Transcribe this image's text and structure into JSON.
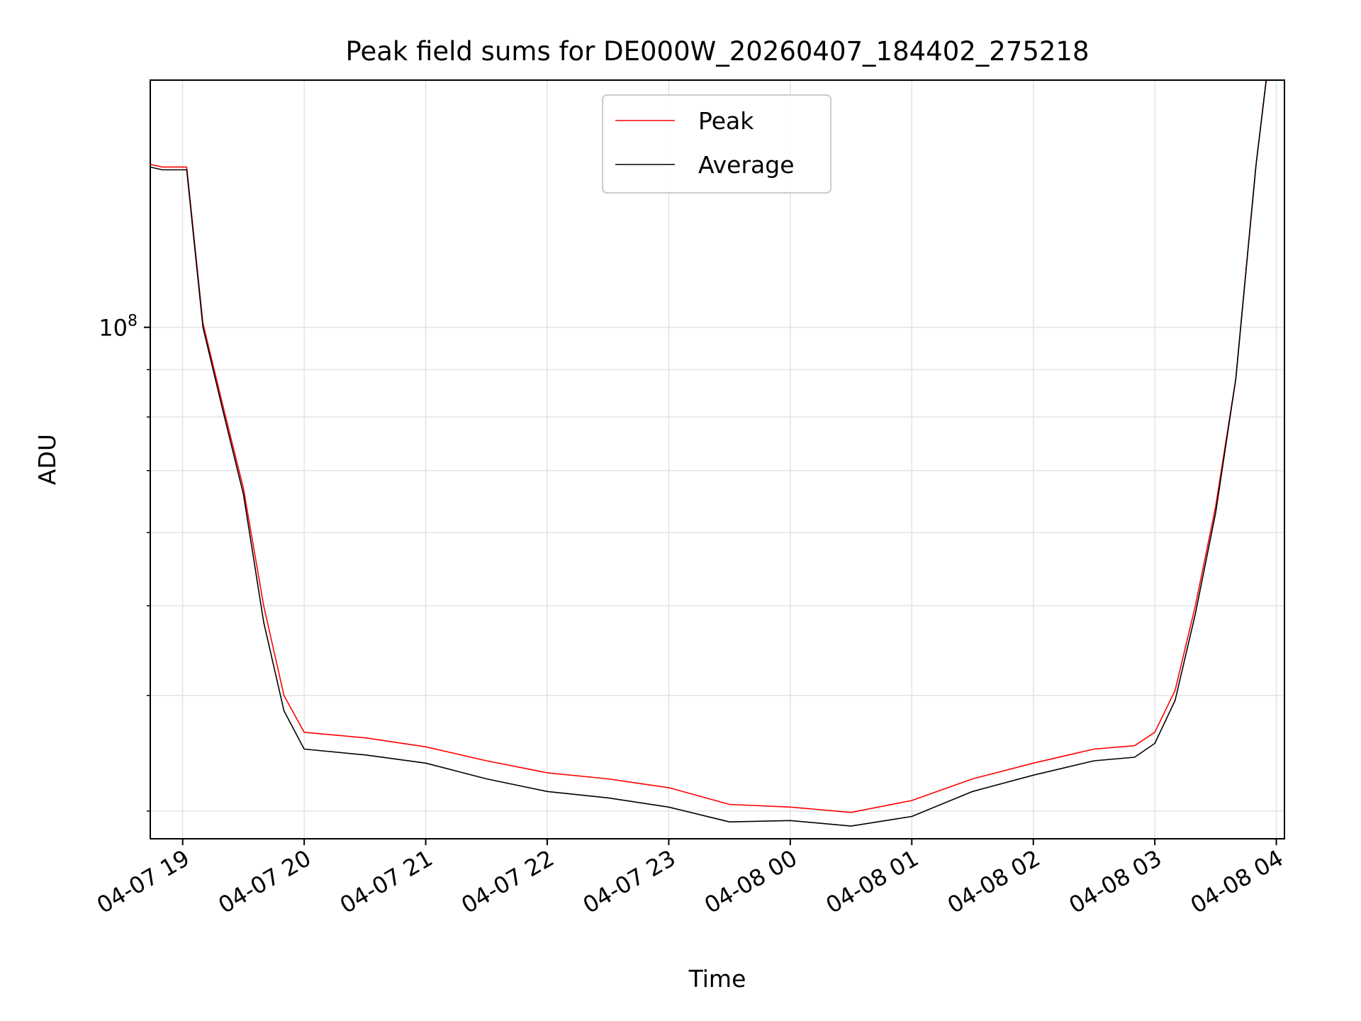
{
  "chart_data": {
    "type": "line",
    "title": "Peak field sums for DE000W_20260407_184402_275218",
    "xlabel": "Time",
    "ylabel": "ADU",
    "y_scale": "log",
    "y_tick_label": {
      "base": "10",
      "exp": "8"
    },
    "x_tick_labels": [
      "04-07 19",
      "04-07 20",
      "04-07 21",
      "04-07 22",
      "04-07 23",
      "04-08 00",
      "04-08 01",
      "04-08 02",
      "04-08 03",
      "04-08 04"
    ],
    "x_start": "2026-04-07 18:44",
    "x_end": "2026-04-08 04:04",
    "ylim": [
      28000000,
      185000000
    ],
    "grid": true,
    "legend": {
      "position": "top-center"
    },
    "series": [
      {
        "name": "Peak",
        "color": "#ff0000",
        "x": [
          "2026-04-07 18:44",
          "2026-04-07 18:50",
          "2026-04-07 19:02",
          "2026-04-07 19:10",
          "2026-04-07 19:20",
          "2026-04-07 19:30",
          "2026-04-07 19:40",
          "2026-04-07 19:50",
          "2026-04-07 20:00",
          "2026-04-07 20:30",
          "2026-04-07 21:00",
          "2026-04-07 21:30",
          "2026-04-07 22:00",
          "2026-04-07 22:30",
          "2026-04-07 23:00",
          "2026-04-07 23:30",
          "2026-04-08 00:00",
          "2026-04-08 00:30",
          "2026-04-08 01:00",
          "2026-04-08 01:30",
          "2026-04-08 02:00",
          "2026-04-08 02:30",
          "2026-04-08 02:50",
          "2026-04-08 03:00",
          "2026-04-08 03:10",
          "2026-04-08 03:20",
          "2026-04-08 03:30",
          "2026-04-08 03:40",
          "2026-04-08 03:45",
          "2026-04-08 03:50",
          "2026-04-08 03:55"
        ],
        "y": [
          150000000,
          149000000,
          149000000,
          101000000,
          82000000,
          67000000,
          50000000,
          40000000,
          36500000,
          36000000,
          35200000,
          34000000,
          33000000,
          32500000,
          31800000,
          30500000,
          30300000,
          29900000,
          30800000,
          32500000,
          33800000,
          35000000,
          35300000,
          36500000,
          40500000,
          50000000,
          64000000,
          88000000,
          115000000,
          150000000,
          185000000
        ]
      },
      {
        "name": "Average",
        "color": "#000000",
        "x": [
          "2026-04-07 18:44",
          "2026-04-07 18:50",
          "2026-04-07 19:02",
          "2026-04-07 19:10",
          "2026-04-07 19:20",
          "2026-04-07 19:30",
          "2026-04-07 19:40",
          "2026-04-07 19:50",
          "2026-04-07 20:00",
          "2026-04-07 20:30",
          "2026-04-07 21:00",
          "2026-04-07 21:30",
          "2026-04-07 22:00",
          "2026-04-07 22:30",
          "2026-04-07 23:00",
          "2026-04-07 23:30",
          "2026-04-08 00:00",
          "2026-04-08 00:30",
          "2026-04-08 01:00",
          "2026-04-08 01:30",
          "2026-04-08 02:00",
          "2026-04-08 02:30",
          "2026-04-08 02:50",
          "2026-04-08 03:00",
          "2026-04-08 03:10",
          "2026-04-08 03:20",
          "2026-04-08 03:30",
          "2026-04-08 03:40",
          "2026-04-08 03:45",
          "2026-04-08 03:50",
          "2026-04-08 03:55"
        ],
        "y": [
          149000000,
          148000000,
          148000000,
          100000000,
          81000000,
          66000000,
          48000000,
          38500000,
          35000000,
          34500000,
          33800000,
          32500000,
          31500000,
          31000000,
          30300000,
          29200000,
          29300000,
          28900000,
          29600000,
          31500000,
          32800000,
          34000000,
          34300000,
          35500000,
          39500000,
          49000000,
          63000000,
          88000000,
          115000000,
          150000000,
          185000000
        ]
      }
    ]
  }
}
